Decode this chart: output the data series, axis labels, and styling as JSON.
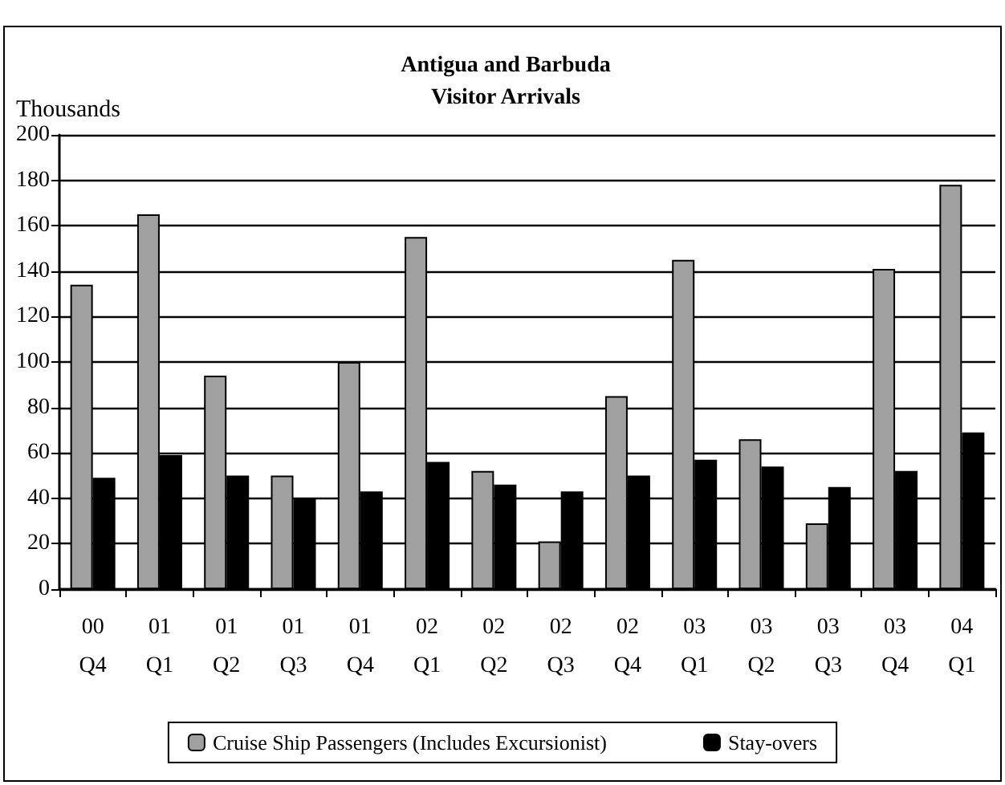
{
  "chart_data": {
    "type": "bar",
    "title": "Antigua and Barbuda\nVisitor Arrivals",
    "ylabel": "Thousands",
    "categories": [
      "00\nQ4",
      "01\nQ1",
      "01\nQ2",
      "01\nQ3",
      "01\nQ4",
      "02\nQ1",
      "02\nQ2",
      "02\nQ3",
      "02\nQ4",
      "03\nQ1",
      "03\nQ2",
      "03\nQ3",
      "03\nQ4",
      "04\nQ1"
    ],
    "series": [
      {
        "name": "Cruise Ship Passengers (Includes Excursionist)",
        "color": "#a0a0a0",
        "values": [
          134,
          165,
          94,
          50,
          100,
          155,
          52,
          21,
          85,
          145,
          66,
          29,
          141,
          178
        ]
      },
      {
        "name": "Stay-overs",
        "color": "#000000",
        "values": [
          49,
          59,
          50,
          40,
          43,
          56,
          46,
          43,
          50,
          57,
          54,
          45,
          52,
          69
        ]
      }
    ],
    "ylim": [
      0,
      200
    ],
    "yticks": [
      0,
      20,
      40,
      60,
      80,
      100,
      120,
      140,
      160,
      180,
      200
    ],
    "grid": "y",
    "legend": "bottom"
  }
}
